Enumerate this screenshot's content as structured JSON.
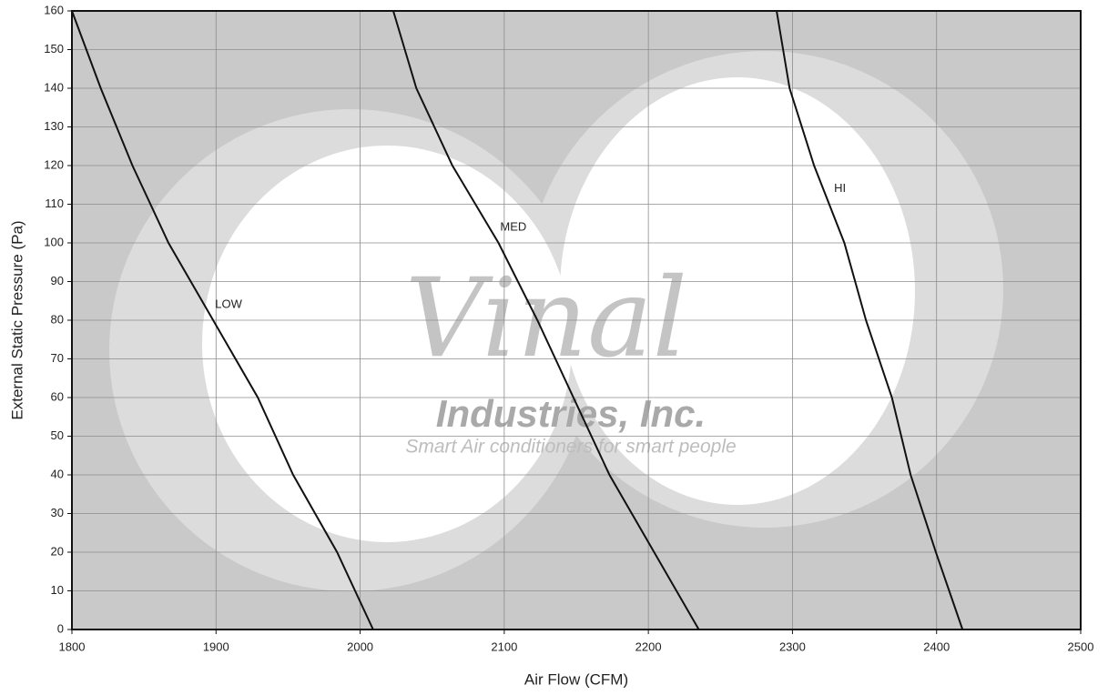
{
  "chart_data": {
    "type": "line",
    "xlabel": "Air Flow (CFM)",
    "ylabel": "External Static Pressure (Pa)",
    "watermark": {
      "logo": "Vinal",
      "company": "Industries, Inc.",
      "tagline": "Smart Air conditioners for smart people"
    },
    "series": [
      {
        "name": "LOW",
        "color": "#111111",
        "x": [
          1800,
          1820,
          1842,
          1867,
          1898,
          1929,
          1953.5,
          1984,
          2009
        ],
        "values": [
          160,
          140,
          120,
          100,
          80,
          60,
          40,
          20,
          0
        ]
      },
      {
        "name": "MED",
        "color": "#111111",
        "x": [
          2023,
          2039,
          2064,
          2096,
          2123,
          2148,
          2173,
          2204,
          2235
        ],
        "values": [
          160,
          140,
          120,
          100,
          80,
          60,
          40,
          20,
          0
        ]
      },
      {
        "name": "HI",
        "color": "#111111",
        "x": [
          2289,
          2298,
          2315,
          2336,
          2351,
          2369,
          2382,
          2399.5,
          2418
        ],
        "values": [
          160,
          140,
          120,
          100,
          80,
          60,
          40,
          20,
          0
        ]
      }
    ],
    "xlim": [
      1800,
      2500
    ],
    "xticks": [
      1800,
      1900,
      2000,
      2100,
      2200,
      2300,
      2400,
      2500
    ],
    "ylim": [
      0,
      160
    ],
    "yticks": [
      0,
      10,
      20,
      30,
      40,
      50,
      60,
      70,
      80,
      90,
      100,
      110,
      120,
      130,
      140,
      150,
      160
    ],
    "grid": true
  }
}
